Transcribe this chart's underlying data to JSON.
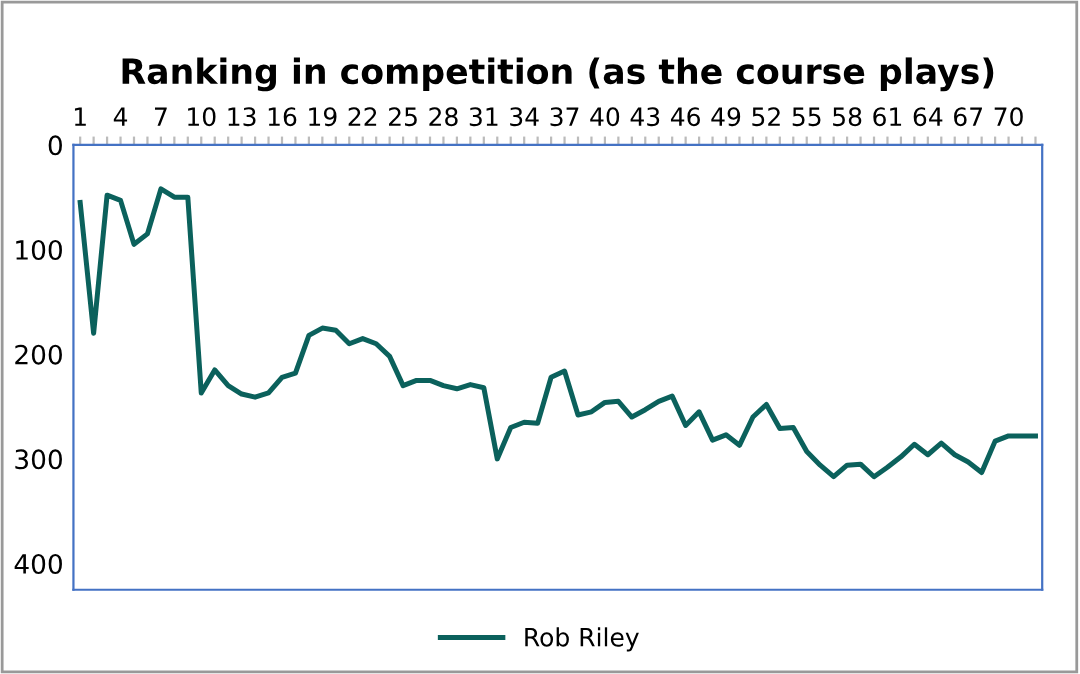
{
  "chart_data": {
    "type": "line",
    "title": "Ranking in competition (as the course plays)",
    "categories": [
      "1",
      null,
      null,
      "4",
      null,
      null,
      "7",
      null,
      null,
      "10",
      null,
      null,
      "13",
      null,
      null,
      "16",
      null,
      null,
      "19",
      null,
      null,
      "22",
      null,
      null,
      "25",
      null,
      null,
      "28",
      null,
      null,
      "31",
      null,
      null,
      "34",
      null,
      null,
      "37",
      null,
      null,
      "40",
      null,
      null,
      "43",
      null,
      null,
      "46",
      null,
      null,
      "49",
      null,
      null,
      "52",
      null,
      null,
      "55",
      null,
      null,
      "58",
      null,
      null,
      "61",
      null,
      null,
      "64",
      null,
      null,
      "67",
      null,
      null,
      "70",
      null,
      null
    ],
    "series": [
      {
        "name": "Rob Riley",
        "color": "#0b615c",
        "values": [
          55,
          180,
          48,
          53,
          95,
          85,
          42,
          50,
          50,
          237,
          215,
          230,
          238,
          241,
          237,
          222,
          218,
          182,
          175,
          177,
          190,
          185,
          190,
          202,
          230,
          225,
          225,
          230,
          233,
          229,
          232,
          300,
          270,
          265,
          266,
          222,
          216,
          258,
          255,
          246,
          245,
          260,
          253,
          245,
          240,
          268,
          255,
          282,
          277,
          287,
          260,
          248,
          271,
          270,
          293,
          306,
          317,
          306,
          305,
          317,
          308,
          298,
          286,
          296,
          285,
          296,
          303,
          313,
          283,
          278,
          278,
          278
        ]
      }
    ],
    "ylim": [
      425,
      0
    ],
    "yticks": [
      0,
      100,
      200,
      300,
      400
    ],
    "grid": false,
    "legend": "bottom",
    "marker": "none",
    "line_style": "solid"
  }
}
